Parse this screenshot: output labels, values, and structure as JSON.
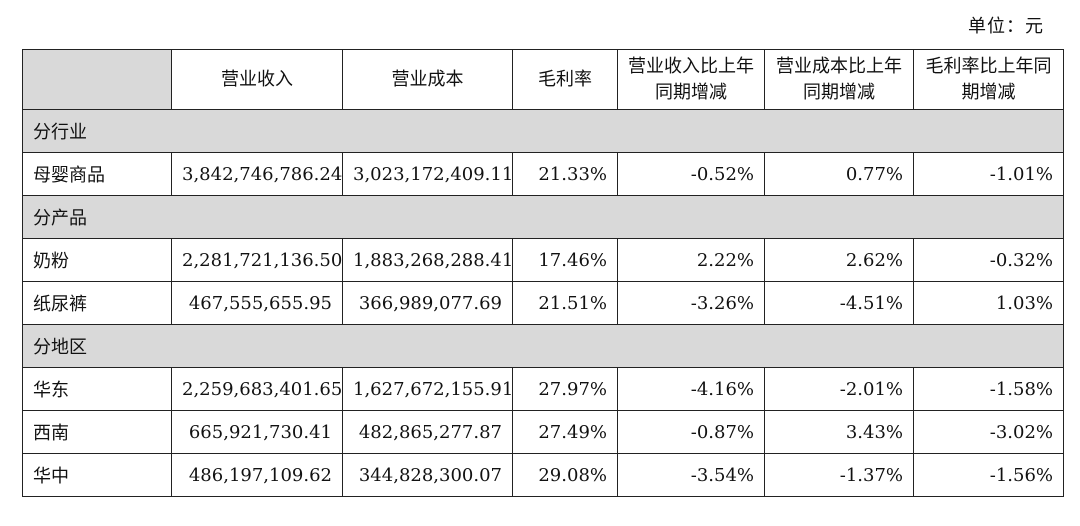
{
  "unit": "单位：元",
  "headers": [
    "",
    "营业收入",
    "营业成本",
    "毛利率",
    "营业收入比上年同期增减",
    "营业成本比上年同期增减",
    "毛利率比上年同期增减"
  ],
  "rows": [
    {
      "type": "section",
      "label": "分行业"
    },
    {
      "type": "data",
      "label": "母婴商品",
      "cells": [
        "3,842,746,786.24",
        "3,023,172,409.11",
        "21.33%",
        "-0.52%",
        "0.77%",
        "-1.01%"
      ]
    },
    {
      "type": "section",
      "label": "分产品"
    },
    {
      "type": "data",
      "label": "奶粉",
      "cells": [
        "2,281,721,136.50",
        "1,883,268,288.41",
        "17.46%",
        "2.22%",
        "2.62%",
        "-0.32%"
      ]
    },
    {
      "type": "data",
      "label": "纸尿裤",
      "cells": [
        "467,555,655.95",
        "366,989,077.69",
        "21.51%",
        "-3.26%",
        "-4.51%",
        "1.03%"
      ]
    },
    {
      "type": "section",
      "label": "分地区"
    },
    {
      "type": "data",
      "label": "华东",
      "cells": [
        "2,259,683,401.65",
        "1,627,672,155.91",
        "27.97%",
        "-4.16%",
        "-2.01%",
        "-1.58%"
      ]
    },
    {
      "type": "data",
      "label": "西南",
      "cells": [
        "665,921,730.41",
        "482,865,277.87",
        "27.49%",
        "-0.87%",
        "3.43%",
        "-3.02%"
      ]
    },
    {
      "type": "data",
      "label": "华中",
      "cells": [
        "486,197,109.62",
        "344,828,300.07",
        "29.08%",
        "-3.54%",
        "-1.37%",
        "-1.56%"
      ]
    }
  ]
}
